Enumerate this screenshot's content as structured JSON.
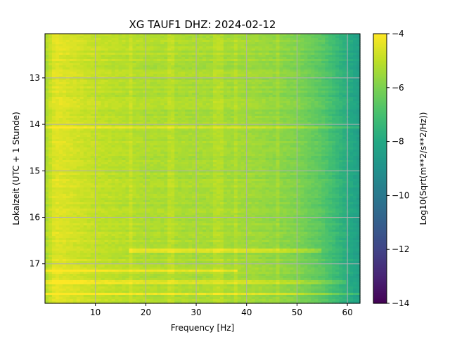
{
  "chart_data": {
    "type": "heatmap",
    "title": "XG TAUF1  DHZ: 2024-02-12",
    "xlabel": "Frequency [Hz]",
    "ylabel": "Lokalzeit (UTC + 1 Stunde)",
    "colorbar_label": "Log10(Sqrt(m**2/s**2/Hz))",
    "colormap": "viridis",
    "grid": true,
    "xlim": [
      0,
      62.5
    ],
    "ylim": [
      17.85,
      12.05
    ],
    "y_inverted": true,
    "x_ticks": [
      10,
      20,
      30,
      40,
      50,
      60
    ],
    "y_ticks": [
      13,
      14,
      15,
      16,
      17
    ],
    "colorbar_range": [
      -14,
      -4
    ],
    "colorbar_ticks": [
      -14,
      -12,
      -10,
      -8,
      -6,
      -4
    ],
    "freq_profile": {
      "frequency_hz": [
        0,
        2,
        5,
        10,
        20,
        30,
        40,
        45,
        50,
        55,
        60,
        62.5
      ],
      "value": [
        -5.3,
        -4.4,
        -4.6,
        -4.9,
        -5.2,
        -5.3,
        -5.4,
        -5.6,
        -5.9,
        -6.6,
        -7.8,
        -8.4
      ]
    },
    "bright_bands": [
      {
        "time": 14.07,
        "f_from": 0,
        "f_to": 62.5,
        "delta": 0.6
      },
      {
        "time": 16.72,
        "f_from": 17,
        "f_to": 55,
        "delta": 0.8
      },
      {
        "time": 17.15,
        "f_from": 0,
        "f_to": 38,
        "delta": 0.9
      },
      {
        "time": 17.38,
        "f_from": 0,
        "f_to": 60,
        "delta": 0.7
      },
      {
        "time": 17.65,
        "f_from": 0,
        "f_to": 62.5,
        "delta": 0.9
      }
    ],
    "vertical_lines_hz": [
      17,
      25,
      34,
      35,
      38,
      46
    ]
  }
}
